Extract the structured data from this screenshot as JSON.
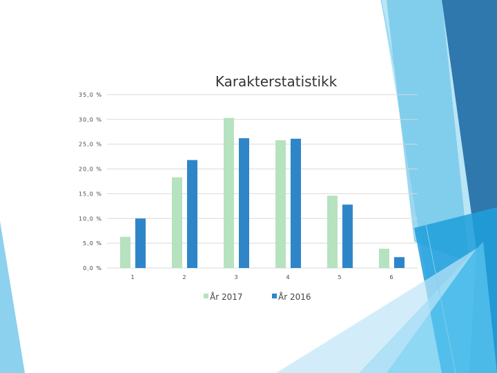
{
  "chart_data": {
    "type": "bar",
    "title": "Karakterstatistikk",
    "categories": [
      "1",
      "2",
      "3",
      "4",
      "5",
      "6"
    ],
    "series": [
      {
        "name": "År 2017",
        "color": "#b6e2bf",
        "values": [
          6.3,
          18.3,
          30.3,
          25.8,
          14.6,
          3.9
        ]
      },
      {
        "name": "År 2016",
        "color": "#2e86c9",
        "values": [
          10.0,
          21.8,
          26.2,
          26.1,
          12.8,
          2.2
        ]
      }
    ],
    "y_ticks": [
      "0,0 %",
      "5,0 %",
      "10,0 %",
      "15,0 %",
      "20,0 %",
      "25,0 %",
      "30,0 %",
      "35,0 %"
    ],
    "ylim": [
      0,
      35
    ],
    "grid": true,
    "legend_position": "bottom"
  }
}
